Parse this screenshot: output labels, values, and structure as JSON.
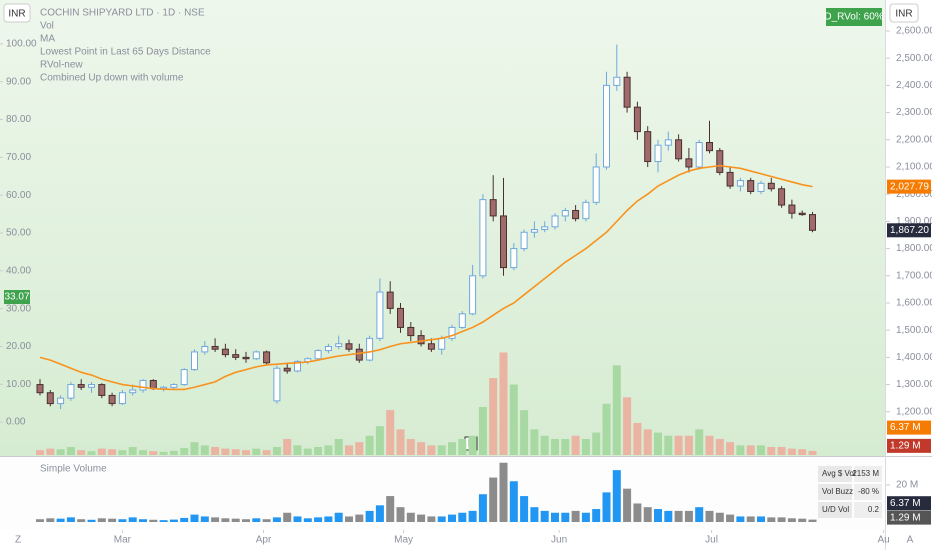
{
  "chart_data": {
    "type": "candlestick",
    "title": "COCHIN SHIPYARD LTD · 1D · NSE",
    "indicators": [
      "Vol",
      "MA",
      "Lowest Point in Last 65 Days Distance",
      "RVol-new",
      "Combined Up down with volume"
    ],
    "currency": "INR",
    "rvol_badge": "D_RVol: 60%",
    "candles": [
      [
        1300,
        1320,
        1260,
        1270
      ],
      [
        1270,
        1280,
        1220,
        1230
      ],
      [
        1230,
        1260,
        1210,
        1250
      ],
      [
        1250,
        1310,
        1240,
        1300
      ],
      [
        1300,
        1320,
        1280,
        1290
      ],
      [
        1290,
        1310,
        1270,
        1300
      ],
      [
        1300,
        1305,
        1250,
        1260
      ],
      [
        1260,
        1270,
        1220,
        1230
      ],
      [
        1230,
        1280,
        1225,
        1270
      ],
      [
        1270,
        1300,
        1260,
        1280
      ],
      [
        1280,
        1320,
        1270,
        1315
      ],
      [
        1315,
        1320,
        1280,
        1285
      ],
      [
        1285,
        1295,
        1275,
        1290
      ],
      [
        1290,
        1305,
        1280,
        1300
      ],
      [
        1300,
        1360,
        1295,
        1355
      ],
      [
        1355,
        1430,
        1350,
        1420
      ],
      [
        1420,
        1460,
        1410,
        1440
      ],
      [
        1440,
        1470,
        1420,
        1430
      ],
      [
        1430,
        1450,
        1400,
        1410
      ],
      [
        1410,
        1430,
        1390,
        1400
      ],
      [
        1400,
        1420,
        1380,
        1395
      ],
      [
        1395,
        1425,
        1390,
        1420
      ],
      [
        1420,
        1425,
        1370,
        1380
      ],
      [
        1240,
        1370,
        1230,
        1360
      ],
      [
        1360,
        1380,
        1340,
        1350
      ],
      [
        1350,
        1390,
        1345,
        1385
      ],
      [
        1385,
        1400,
        1375,
        1395
      ],
      [
        1395,
        1430,
        1390,
        1425
      ],
      [
        1425,
        1450,
        1415,
        1440
      ],
      [
        1440,
        1480,
        1430,
        1450
      ],
      [
        1450,
        1465,
        1420,
        1430
      ],
      [
        1430,
        1450,
        1380,
        1390
      ],
      [
        1390,
        1480,
        1385,
        1470
      ],
      [
        1470,
        1690,
        1460,
        1640
      ],
      [
        1640,
        1680,
        1560,
        1580
      ],
      [
        1580,
        1600,
        1490,
        1510
      ],
      [
        1510,
        1530,
        1460,
        1480
      ],
      [
        1480,
        1500,
        1440,
        1450
      ],
      [
        1450,
        1470,
        1420,
        1430
      ],
      [
        1430,
        1480,
        1410,
        1470
      ],
      [
        1470,
        1520,
        1460,
        1510
      ],
      [
        1510,
        1570,
        1505,
        1560
      ],
      [
        1560,
        1740,
        1555,
        1700
      ],
      [
        1700,
        2000,
        1690,
        1980
      ],
      [
        1980,
        2070,
        1900,
        1920
      ],
      [
        1920,
        2060,
        1700,
        1730
      ],
      [
        1730,
        1820,
        1720,
        1800
      ],
      [
        1800,
        1870,
        1790,
        1860
      ],
      [
        1860,
        1900,
        1840,
        1870
      ],
      [
        1870,
        1900,
        1860,
        1880
      ],
      [
        1880,
        1930,
        1870,
        1920
      ],
      [
        1920,
        1950,
        1900,
        1940
      ],
      [
        1940,
        1960,
        1900,
        1910
      ],
      [
        1910,
        1980,
        1900,
        1970
      ],
      [
        1970,
        2150,
        1960,
        2100
      ],
      [
        2100,
        2450,
        2090,
        2400
      ],
      [
        2400,
        2550,
        2380,
        2430
      ],
      [
        2430,
        2450,
        2300,
        2320
      ],
      [
        2320,
        2340,
        2200,
        2230
      ],
      [
        2230,
        2250,
        2100,
        2120
      ],
      [
        2120,
        2200,
        2080,
        2180
      ],
      [
        2180,
        2230,
        2160,
        2200
      ],
      [
        2200,
        2220,
        2120,
        2130
      ],
      [
        2130,
        2170,
        2080,
        2100
      ],
      [
        2100,
        2200,
        2090,
        2190
      ],
      [
        2190,
        2270,
        2150,
        2160
      ],
      [
        2160,
        2170,
        2070,
        2080
      ],
      [
        2080,
        2100,
        2020,
        2030
      ],
      [
        2030,
        2060,
        2010,
        2050
      ],
      [
        2050,
        2060,
        2000,
        2010
      ],
      [
        2010,
        2050,
        2000,
        2040
      ],
      [
        2040,
        2060,
        2010,
        2020
      ],
      [
        2020,
        2030,
        1950,
        1960
      ],
      [
        1960,
        1980,
        1910,
        1930
      ],
      [
        1930,
        1940,
        1920,
        1925
      ],
      [
        1925,
        1935,
        1860,
        1867.2
      ]
    ],
    "ma": [
      1400,
      1390,
      1375,
      1360,
      1345,
      1335,
      1320,
      1310,
      1300,
      1295,
      1290,
      1285,
      1283,
      1282,
      1282,
      1290,
      1300,
      1310,
      1330,
      1345,
      1355,
      1365,
      1372,
      1375,
      1378,
      1380,
      1383,
      1390,
      1398,
      1405,
      1410,
      1415,
      1420,
      1428,
      1440,
      1450,
      1455,
      1460,
      1465,
      1470,
      1480,
      1495,
      1510,
      1530,
      1555,
      1580,
      1600,
      1630,
      1660,
      1690,
      1720,
      1750,
      1775,
      1800,
      1830,
      1860,
      1900,
      1940,
      1975,
      2000,
      2030,
      2050,
      2070,
      2085,
      2095,
      2100,
      2105,
      2100,
      2095,
      2085,
      2075,
      2065,
      2055,
      2045,
      2035,
      2027.79
    ],
    "volume": [
      1.5,
      2,
      1.8,
      2.5,
      1.5,
      1.2,
      2,
      1.8,
      1.5,
      2.5,
      1.5,
      1.2,
      1,
      1.3,
      2.2,
      4,
      3,
      2.5,
      2,
      1.8,
      1.5,
      2,
      1.5,
      2.5,
      5,
      3,
      2,
      2.5,
      3,
      5,
      3,
      4,
      6,
      9,
      14,
      8,
      5,
      4,
      3,
      3,
      4,
      5,
      6,
      15,
      24,
      32,
      22,
      14,
      8,
      6,
      5,
      5,
      6,
      5,
      7,
      16,
      28,
      18,
      10,
      8,
      7,
      6,
      6,
      6,
      8,
      6,
      5,
      4,
      3,
      3,
      3,
      2.5,
      2.5,
      2,
      1.8,
      1.29
    ],
    "ylim": [
      1041,
      2714
    ],
    "yticks": [
      {
        "value": 2600,
        "label": "2,600.00"
      },
      {
        "value": 2500,
        "label": "2,500.00"
      },
      {
        "value": 2400,
        "label": "2,400.00"
      },
      {
        "value": 2300,
        "label": "2,300.00"
      },
      {
        "value": 2200,
        "label": "2,200.00"
      },
      {
        "value": 2100,
        "label": "2,100.00"
      },
      {
        "value": 2000,
        "label": "2,000.00"
      },
      {
        "value": 1900,
        "label": "1,900.00"
      },
      {
        "value": 1800,
        "label": "1,800.00"
      },
      {
        "value": 1700,
        "label": "1,700.00"
      },
      {
        "value": 1600,
        "label": "1,600.00"
      },
      {
        "value": 1500,
        "label": "1,500.00"
      },
      {
        "value": 1400,
        "label": "1,400.00"
      },
      {
        "value": 1300,
        "label": "1,300.00"
      },
      {
        "value": 1200,
        "label": "1,200.00"
      }
    ],
    "y2lim": [
      -8.7,
      111.6
    ],
    "y2ticks": [
      {
        "value": 100,
        "label": "100.00"
      },
      {
        "value": 90,
        "label": "90.00"
      },
      {
        "value": 80,
        "label": "80.00"
      },
      {
        "value": 70,
        "label": "70.00"
      },
      {
        "value": 60,
        "label": "60.00"
      },
      {
        "value": 50,
        "label": "50.00"
      },
      {
        "value": 40,
        "label": "40.00"
      },
      {
        "value": 30,
        "label": "30.00"
      },
      {
        "value": 20,
        "label": "20.00"
      },
      {
        "value": 10,
        "label": "10.00"
      },
      {
        "value": 0,
        "label": "0.00"
      }
    ],
    "left_badge": 33.07,
    "price_badges": [
      {
        "value": 2027.79,
        "label": "2,027.79",
        "color": "#f57c00"
      },
      {
        "value": 1867.2,
        "label": "1,867.20",
        "color": "#262b3e"
      }
    ],
    "vol_lim": [
      0,
      142
    ],
    "vol_badges": [
      {
        "value": 6.37,
        "label": "6.37 M",
        "color": "#f57c00"
      },
      {
        "value": 1.29,
        "label": "1.29 M",
        "color": "#c0392b"
      }
    ],
    "xticks": [
      {
        "value": 8,
        "label": "Mar"
      },
      {
        "value": 21.7,
        "label": "Apr"
      },
      {
        "value": 35.3,
        "label": "May"
      },
      {
        "value": 50.4,
        "label": "Jun"
      },
      {
        "value": 65.2,
        "label": "Jul"
      },
      {
        "value": 81.9,
        "label": "Au"
      }
    ],
    "colors": {
      "up": "#ffffff",
      "up_edge": "#6fa8dc",
      "down": "#a06b6b",
      "down_edge": "#4a2f2f",
      "ma": "#f7931e",
      "vol_up": "#a9d9a3",
      "vol_down": "#eab3a2",
      "lvol_up": "#2196f3",
      "lvol_down": "#8c8c8c"
    },
    "lower_panel": {
      "title": "Simple Volume",
      "vol_lim": [
        0,
        35.1
      ],
      "yticks": [
        {
          "value": 20,
          "label": "20 M"
        }
      ],
      "badges": [
        {
          "value": 6.37,
          "label": "6.37 M",
          "color": "#262b3e"
        },
        {
          "value": 1.29,
          "label": "1.29 M",
          "color": "#555"
        }
      ],
      "table": [
        [
          "Avg $ Vol",
          "2153 M"
        ],
        [
          "Vol Buzz",
          "-80 %"
        ],
        [
          "U/D Vol",
          "0.2"
        ]
      ]
    },
    "earnings": "E",
    "corner_left": "Z",
    "corner_right": "A"
  }
}
